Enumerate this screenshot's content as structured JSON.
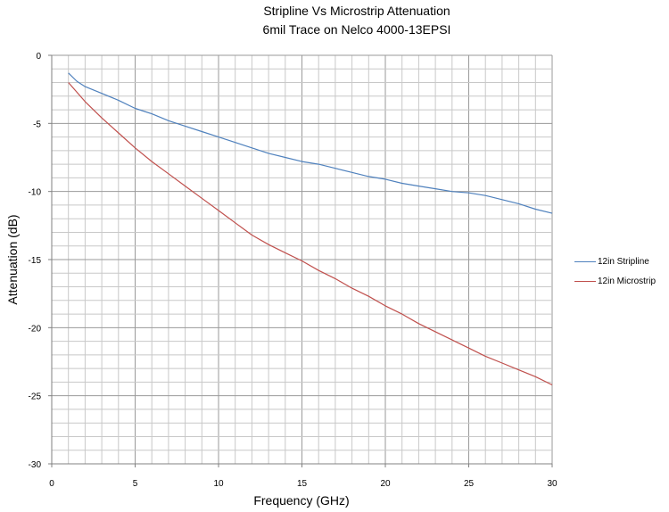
{
  "chart_data": {
    "type": "line",
    "title": "Stripline Vs Microstrip Attenuation",
    "subtitle": "6mil Trace on Nelco 4000-13EPSI",
    "xlabel": "Frequency (GHz)",
    "ylabel": "Attenuation (dB)",
    "xlim": [
      0,
      30
    ],
    "ylim": [
      -30,
      0
    ],
    "xticks": [
      0,
      5,
      10,
      15,
      20,
      25,
      30
    ],
    "yticks": [
      0,
      -5,
      -10,
      -15,
      -20,
      -25,
      -30
    ],
    "grid": true,
    "legend_position": "right",
    "series": [
      {
        "name": "12in Stripline",
        "color": "#4f81bd",
        "x": [
          1,
          1.5,
          2,
          3,
          4,
          5,
          6,
          7,
          8,
          9,
          10,
          11,
          12,
          13,
          14,
          15,
          16,
          17,
          18,
          19,
          20,
          21,
          22,
          23,
          24,
          25,
          26,
          27,
          28,
          29,
          30
        ],
        "y": [
          -1.3,
          -1.9,
          -2.3,
          -2.8,
          -3.3,
          -3.9,
          -4.3,
          -4.8,
          -5.2,
          -5.6,
          -6.0,
          -6.4,
          -6.8,
          -7.2,
          -7.5,
          -7.8,
          -8.0,
          -8.3,
          -8.6,
          -8.9,
          -9.1,
          -9.4,
          -9.6,
          -9.8,
          -10.0,
          -10.1,
          -10.3,
          -10.6,
          -10.9,
          -11.3,
          -11.6
        ]
      },
      {
        "name": "12in Microstrip",
        "color": "#c0504d",
        "x": [
          1,
          2,
          3,
          4,
          5,
          6,
          7,
          8,
          9,
          10,
          11,
          12,
          13,
          14,
          15,
          16,
          17,
          18,
          19,
          20,
          21,
          22,
          23,
          24,
          25,
          26,
          27,
          28,
          29,
          30
        ],
        "y": [
          -2.0,
          -3.4,
          -4.6,
          -5.7,
          -6.8,
          -7.8,
          -8.7,
          -9.6,
          -10.5,
          -11.4,
          -12.3,
          -13.2,
          -13.9,
          -14.5,
          -15.1,
          -15.8,
          -16.4,
          -17.1,
          -17.7,
          -18.4,
          -19.0,
          -19.7,
          -20.3,
          -20.9,
          -21.5,
          -22.1,
          -22.6,
          -23.1,
          -23.6,
          -24.2
        ]
      }
    ]
  }
}
